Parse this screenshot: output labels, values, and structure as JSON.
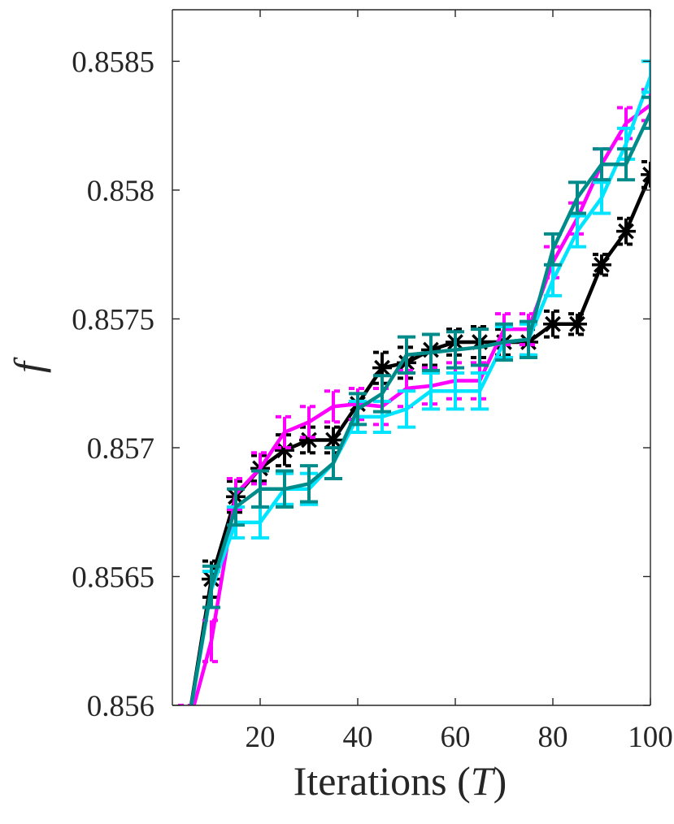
{
  "chart_data": {
    "type": "line",
    "title": "",
    "xlabel": "Iterations",
    "xlabel_symbol": "T",
    "ylabel": "f",
    "xlim": [
      2,
      100
    ],
    "ylim": [
      0.856,
      0.8587
    ],
    "x_ticks": [
      20,
      40,
      60,
      80,
      100
    ],
    "y_ticks": [
      0.856,
      0.8565,
      0.857,
      0.8575,
      0.858,
      0.8585
    ],
    "x_tick_labels": [
      "20",
      "40",
      "60",
      "80",
      "100"
    ],
    "y_tick_labels": [
      "0.856",
      "0.8565",
      "0.857",
      "0.8575",
      "0.858",
      "0.8585"
    ],
    "grid": false,
    "x": [
      5,
      10,
      15,
      20,
      25,
      30,
      35,
      40,
      45,
      50,
      55,
      60,
      65,
      70,
      75,
      80,
      85,
      90,
      95,
      100
    ],
    "series": [
      {
        "color": "#000000",
        "marker": "asterisk",
        "dashed_errorbars": true,
        "values": [
          0.8559,
          0.85649,
          0.85681,
          0.85692,
          0.85699,
          0.85703,
          0.85703,
          0.85717,
          0.85731,
          0.85733,
          0.85738,
          0.85741,
          0.85741,
          0.85741,
          0.85741,
          0.85748,
          0.85748,
          0.85771,
          0.85784,
          0.85806
        ],
        "err": [
          8e-05,
          7e-05,
          6e-05,
          5e-05,
          6e-05,
          5e-05,
          5e-05,
          6e-05,
          6e-05,
          6e-05,
          6e-05,
          5e-05,
          6e-05,
          5e-05,
          5e-05,
          5e-05,
          4e-05,
          4e-05,
          5e-05,
          5e-05
        ]
      },
      {
        "color": "#ff00ff",
        "marker": "none",
        "dashed_errorbars": true,
        "values": [
          0.8559,
          0.85625,
          0.85682,
          0.85692,
          0.85706,
          0.8571,
          0.85716,
          0.85717,
          0.85716,
          0.85723,
          0.85724,
          0.85726,
          0.85726,
          0.85746,
          0.85746,
          0.85772,
          0.85789,
          0.8581,
          0.85826,
          0.85833
        ],
        "err": [
          0.0001,
          8e-05,
          6e-05,
          6e-05,
          6e-05,
          6e-05,
          6e-05,
          6e-05,
          7e-05,
          7e-05,
          7e-05,
          7e-05,
          7e-05,
          6e-05,
          6e-05,
          6e-05,
          6e-05,
          6e-05,
          6e-05,
          6e-05
        ]
      },
      {
        "color": "#00e5ff",
        "marker": "none",
        "dashed_errorbars": false,
        "values": [
          0.8559,
          0.85645,
          0.85671,
          0.85671,
          0.85684,
          0.85684,
          0.85694,
          0.85712,
          0.85712,
          0.85715,
          0.85722,
          0.85722,
          0.85722,
          0.85741,
          0.85742,
          0.85765,
          0.85784,
          0.85797,
          0.85818,
          0.85844
        ],
        "err": [
          9e-05,
          7e-05,
          6e-05,
          6e-05,
          6e-05,
          6e-05,
          6e-05,
          6e-05,
          6e-05,
          7e-05,
          7e-05,
          7e-05,
          7e-05,
          6e-05,
          6e-05,
          6e-05,
          6e-05,
          6e-05,
          6e-05,
          6e-05
        ]
      },
      {
        "color": "#008b8b",
        "marker": "none",
        "dashed_errorbars": false,
        "values": [
          0.8559,
          0.85646,
          0.85677,
          0.85684,
          0.85684,
          0.85686,
          0.85694,
          0.85715,
          0.85721,
          0.85736,
          0.85737,
          0.85738,
          0.85739,
          0.85741,
          0.85742,
          0.85777,
          0.85797,
          0.8581,
          0.8581,
          0.8583
        ],
        "err": [
          9e-05,
          8e-05,
          7e-05,
          7e-05,
          7e-05,
          7e-05,
          6e-05,
          6e-05,
          7e-05,
          7e-05,
          7e-05,
          7e-05,
          7e-05,
          7e-05,
          7e-05,
          6e-05,
          6e-05,
          6e-05,
          6e-05,
          6e-05
        ]
      }
    ]
  }
}
